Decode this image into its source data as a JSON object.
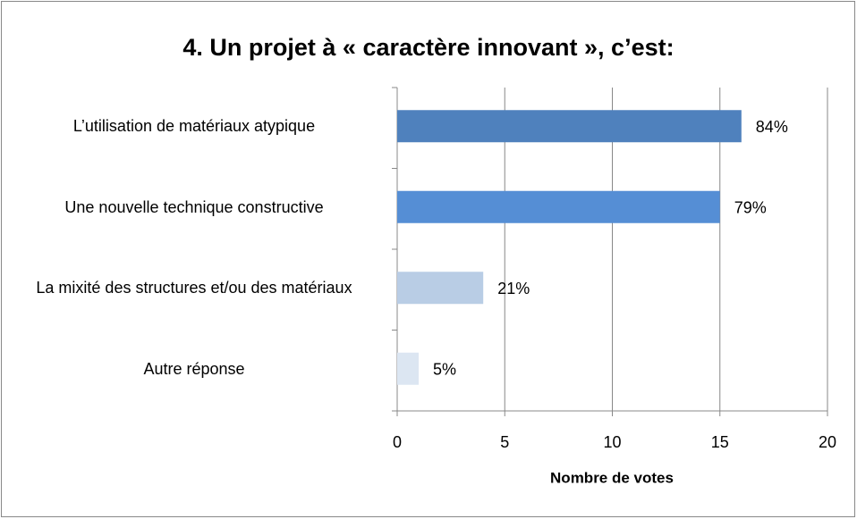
{
  "chart_data": {
    "type": "bar",
    "orientation": "horizontal",
    "title": "4. Un projet à « caractère innovant », c’est:",
    "categories": [
      "L’utilisation de matériaux atypique",
      "Une nouvelle technique constructive",
      "La mixité des structures et/ou des matériaux",
      "Autre réponse"
    ],
    "values": [
      16,
      15,
      4,
      1
    ],
    "annotations": [
      "84%",
      "79%",
      "21%",
      "5%"
    ],
    "colors": [
      "#4f81bd",
      "#558ed5",
      "#b9cde5",
      "#dce6f2"
    ],
    "xlabel": "Nombre de votes",
    "xlim": [
      0,
      20
    ],
    "xticks": [
      0,
      5,
      10,
      15,
      20
    ],
    "grid": true
  }
}
